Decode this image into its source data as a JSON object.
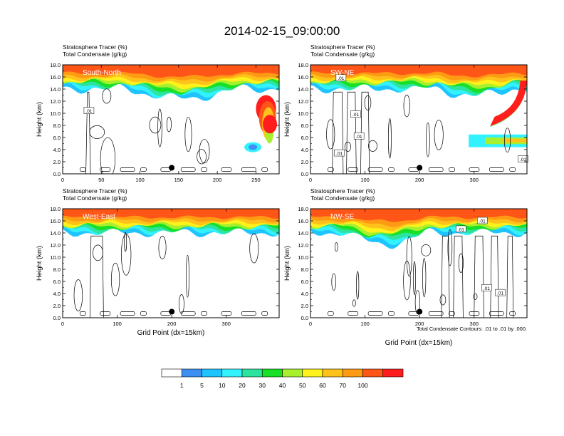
{
  "figure": {
    "title": "2014-02-15_09:00:00",
    "contour_info": "Total Condensate Contours: .01 to .01 by .000"
  },
  "colorbar": {
    "colors": [
      "#ffffff",
      "#3d8ff2",
      "#1fc4ff",
      "#33f2ff",
      "#2ce3a0",
      "#17e026",
      "#a8f02e",
      "#fff21c",
      "#ffc21a",
      "#ff9a14",
      "#ff5517",
      "#ff1d1d"
    ],
    "labels": [
      "1",
      "5",
      "10",
      "20",
      "30",
      "40",
      "50",
      "60",
      "70",
      "100"
    ]
  },
  "chart_data": [
    {
      "type": "contour",
      "title_line1": "Stratosphere Tracer   (%)",
      "title_line2": "Total Condensate   (g/kg)",
      "panel_label": "South-North",
      "xlabel": "",
      "ylabel": "Height (km)",
      "xlim": [
        0,
        280
      ],
      "ylim": [
        0,
        18
      ],
      "xticks": [
        "0",
        "50",
        "100",
        "150",
        "200",
        "250"
      ],
      "xtick_values": [
        0,
        50,
        100,
        150,
        200,
        250
      ],
      "yticks": [
        "0.0",
        "2.0",
        "4.0",
        "6.0",
        "8.0",
        "10.0",
        "12.0",
        "14.0",
        "16.0",
        "18.0"
      ],
      "contour_labels": [
        {
          "text": ".01",
          "x": 34,
          "y": 10.4
        }
      ],
      "marker": {
        "x": 141,
        "y": 1.0
      },
      "tracer_top_km": 16.4,
      "tracer_base_km": 14.5
    },
    {
      "type": "contour",
      "title_line1": "Stratosphere Tracer   (%)",
      "title_line2": "Total Condensate   (g/kg)",
      "panel_label": "SW-NE",
      "xlabel": "",
      "ylabel": "Height (km)",
      "xlim": [
        0,
        397
      ],
      "ylim": [
        0,
        18
      ],
      "xticks": [
        "0",
        "100",
        "200",
        "300"
      ],
      "xtick_values": [
        0,
        100,
        200,
        300
      ],
      "yticks": [
        "0.0",
        "2.0",
        "4.0",
        "6.0",
        "8.0",
        "10.0",
        "12.0",
        "14.0",
        "16.0",
        "18.0"
      ],
      "contour_labels": [
        {
          "text": ".01",
          "x": 56,
          "y": 15.8
        },
        {
          "text": ".01",
          "x": 83,
          "y": 9.8
        },
        {
          "text": ".01",
          "x": 89,
          "y": 6.2
        },
        {
          "text": ".01",
          "x": 53,
          "y": 3.4
        },
        {
          "text": ".01",
          "x": 390,
          "y": 2.4
        }
      ],
      "marker": {
        "x": 200,
        "y": 1.0
      },
      "tracer_top_km": 16.4,
      "tracer_base_km": 14.5
    },
    {
      "type": "contour",
      "title_line1": "Stratosphere Tracer   (%)",
      "title_line2": "Total Condensate   (g/kg)",
      "panel_label": "West-East",
      "xlabel": "Grid Point (dx=15km)",
      "ylabel": "Height (km)",
      "xlim": [
        0,
        397
      ],
      "ylim": [
        0,
        18
      ],
      "xticks": [
        "0",
        "100",
        "200",
        "300"
      ],
      "xtick_values": [
        0,
        100,
        200,
        300
      ],
      "yticks": [
        "0.0",
        "2.0",
        "4.0",
        "6.0",
        "8.0",
        "10.0",
        "12.0",
        "14.0",
        "16.0",
        "18.0"
      ],
      "contour_labels": [],
      "marker": {
        "x": 200,
        "y": 1.0
      },
      "tracer_top_km": 16.4,
      "tracer_base_km": 15.0
    },
    {
      "type": "contour",
      "title_line1": "Stratosphere Tracer   (%)",
      "title_line2": "Total Condensate   (g/kg)",
      "panel_label": "NW-SE",
      "xlabel": "Grid Point (dx=15km)",
      "ylabel": "Height (km)",
      "xlim": [
        0,
        397
      ],
      "ylim": [
        0,
        18
      ],
      "xticks": [
        "0",
        "100",
        "200",
        "300"
      ],
      "xtick_values": [
        0,
        100,
        200,
        300
      ],
      "yticks": [
        "0.0",
        "2.0",
        "4.0",
        "6.0",
        "8.0",
        "10.0",
        "12.0",
        "14.0",
        "16.0",
        "18.0"
      ],
      "contour_labels": [
        {
          "text": ".01",
          "x": 315,
          "y": 16.0
        },
        {
          "text": ".01",
          "x": 276,
          "y": 14.6
        },
        {
          "text": ".01",
          "x": 323,
          "y": 4.9
        },
        {
          "text": ".01",
          "x": 348,
          "y": 4.1
        }
      ],
      "marker": {
        "x": 200,
        "y": 1.0
      },
      "tracer_top_km": 16.4,
      "tracer_base_km": 14.2
    }
  ]
}
